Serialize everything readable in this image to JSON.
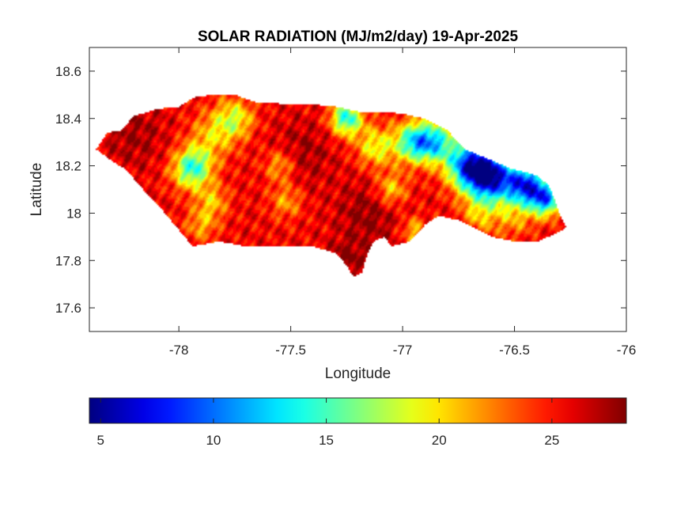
{
  "chart_data": {
    "type": "heatmap",
    "title": "SOLAR RADIATION (MJ/m2/day) 19-Apr-2025",
    "xlabel": "Longitude",
    "ylabel": "Latitude",
    "xlim": [
      -78.4,
      -76
    ],
    "ylim": [
      17.5,
      18.7
    ],
    "xticks": [
      -78,
      -77.5,
      -77,
      -76.5,
      -76
    ],
    "yticks": [
      17.6,
      17.8,
      18,
      18.2,
      18.4,
      18.6
    ],
    "grid": false,
    "colormap": "jet",
    "colorbar": {
      "location": "bottom",
      "range": [
        4.5,
        28.3
      ],
      "ticks": [
        5,
        10,
        15,
        20,
        25
      ]
    },
    "region_outline": [
      [
        -78.37,
        18.27
      ],
      [
        -78.32,
        18.34
      ],
      [
        -78.26,
        18.35
      ],
      [
        -78.2,
        18.41
      ],
      [
        -78.1,
        18.44
      ],
      [
        -78.0,
        18.45
      ],
      [
        -77.93,
        18.49
      ],
      [
        -77.85,
        18.5
      ],
      [
        -77.75,
        18.5
      ],
      [
        -77.66,
        18.47
      ],
      [
        -77.5,
        18.46
      ],
      [
        -77.4,
        18.46
      ],
      [
        -77.3,
        18.45
      ],
      [
        -77.2,
        18.43
      ],
      [
        -77.1,
        18.43
      ],
      [
        -77.0,
        18.42
      ],
      [
        -76.9,
        18.4
      ],
      [
        -76.8,
        18.35
      ],
      [
        -76.72,
        18.27
      ],
      [
        -76.62,
        18.23
      ],
      [
        -76.52,
        18.19
      ],
      [
        -76.4,
        18.16
      ],
      [
        -76.35,
        18.12
      ],
      [
        -76.32,
        18.06
      ],
      [
        -76.3,
        18.0
      ],
      [
        -76.27,
        17.94
      ],
      [
        -76.3,
        17.92
      ],
      [
        -76.4,
        17.88
      ],
      [
        -76.5,
        17.88
      ],
      [
        -76.6,
        17.9
      ],
      [
        -76.75,
        17.97
      ],
      [
        -76.84,
        17.99
      ],
      [
        -76.9,
        17.95
      ],
      [
        -76.97,
        17.88
      ],
      [
        -77.05,
        17.86
      ],
      [
        -77.08,
        17.9
      ],
      [
        -77.13,
        17.88
      ],
      [
        -77.16,
        17.82
      ],
      [
        -77.18,
        17.75
      ],
      [
        -77.22,
        17.73
      ],
      [
        -77.25,
        17.78
      ],
      [
        -77.3,
        17.83
      ],
      [
        -77.4,
        17.86
      ],
      [
        -77.5,
        17.86
      ],
      [
        -77.6,
        17.86
      ],
      [
        -77.7,
        17.86
      ],
      [
        -77.82,
        17.88
      ],
      [
        -77.94,
        17.86
      ],
      [
        -78.0,
        17.93
      ],
      [
        -78.08,
        18.02
      ],
      [
        -78.18,
        18.12
      ],
      [
        -78.23,
        18.18
      ],
      [
        -78.3,
        18.22
      ],
      [
        -78.37,
        18.27
      ]
    ],
    "surface_base_value": 25.5,
    "surface_components": [
      {
        "lon": -77.75,
        "lat": 18.4,
        "value": 19,
        "spread": 0.06
      },
      {
        "lon": -77.85,
        "lat": 18.33,
        "value": 21,
        "spread": 0.07
      },
      {
        "lon": -77.93,
        "lat": 18.2,
        "value": 19.5,
        "spread": 0.06
      },
      {
        "lon": -77.95,
        "lat": 18.18,
        "value": 20,
        "spread": 0.06
      },
      {
        "lon": -77.85,
        "lat": 18.05,
        "value": 21,
        "spread": 0.05
      },
      {
        "lon": -77.9,
        "lat": 17.95,
        "value": 21.5,
        "spread": 0.05
      },
      {
        "lon": -77.55,
        "lat": 18.2,
        "value": 21,
        "spread": 0.05
      },
      {
        "lon": -77.52,
        "lat": 18.05,
        "value": 21.5,
        "spread": 0.05
      },
      {
        "lon": -77.25,
        "lat": 18.4,
        "value": 14,
        "spread": 0.05
      },
      {
        "lon": -77.12,
        "lat": 18.28,
        "value": 19,
        "spread": 0.06
      },
      {
        "lon": -77.05,
        "lat": 18.1,
        "value": 20,
        "spread": 0.05
      },
      {
        "lon": -76.95,
        "lat": 17.93,
        "value": 21,
        "spread": 0.04
      },
      {
        "lon": -76.95,
        "lat": 18.3,
        "value": 14,
        "spread": 0.06
      },
      {
        "lon": -76.85,
        "lat": 18.3,
        "value": 15,
        "spread": 0.06
      },
      {
        "lon": -76.7,
        "lat": 18.2,
        "value": 9,
        "spread": 0.07
      },
      {
        "lon": -76.6,
        "lat": 18.15,
        "value": 8.5,
        "spread": 0.07
      },
      {
        "lon": -76.45,
        "lat": 18.12,
        "value": 9.5,
        "spread": 0.06
      },
      {
        "lon": -76.36,
        "lat": 18.06,
        "value": 12,
        "spread": 0.05
      },
      {
        "lon": -76.65,
        "lat": 18.0,
        "value": 21,
        "spread": 0.06
      },
      {
        "lon": -76.5,
        "lat": 17.98,
        "value": 22,
        "spread": 0.06
      },
      {
        "lon": -77.45,
        "lat": 18.25,
        "value": 27.5,
        "spread": 0.1
      },
      {
        "lon": -77.15,
        "lat": 18.0,
        "value": 28,
        "spread": 0.1
      },
      {
        "lon": -78.2,
        "lat": 18.33,
        "value": 27.5,
        "spread": 0.1
      },
      {
        "lon": -77.25,
        "lat": 17.8,
        "value": 28,
        "spread": 0.06
      }
    ]
  }
}
